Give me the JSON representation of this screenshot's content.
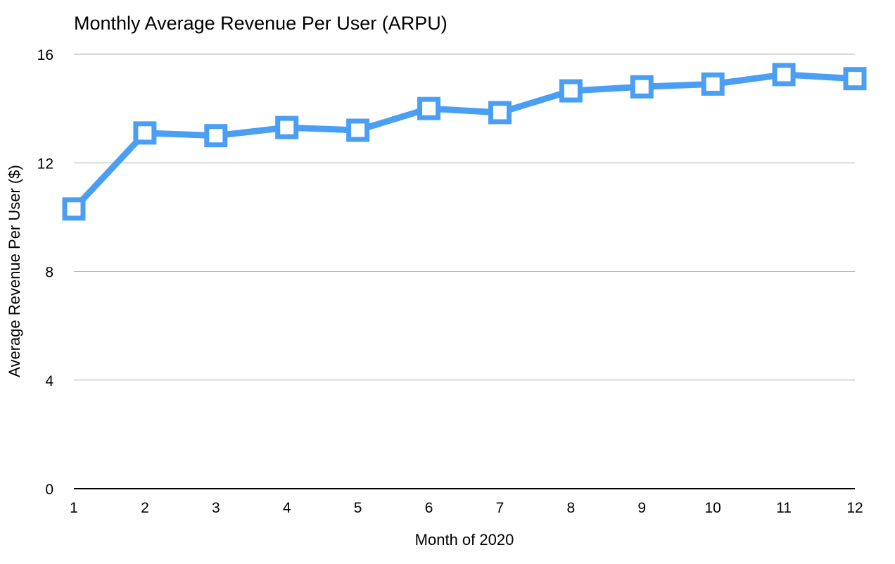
{
  "chart_data": {
    "type": "line",
    "title": "Monthly Average Revenue Per User (ARPU)",
    "xlabel": "Month of 2020",
    "ylabel": "Average Revenue Per User ($)",
    "x": [
      1,
      2,
      3,
      4,
      5,
      6,
      7,
      8,
      9,
      10,
      11,
      12
    ],
    "series": [
      {
        "values": [
          10.3,
          13.1,
          13.0,
          13.3,
          13.2,
          14.0,
          13.85,
          14.65,
          14.8,
          14.9,
          15.25,
          15.1
        ],
        "color": "#4a9ff5",
        "marker": "square"
      }
    ],
    "xlim": [
      1,
      12
    ],
    "ylim": [
      0,
      16
    ],
    "x_ticks": [
      "1",
      "2",
      "3",
      "4",
      "5",
      "6",
      "7",
      "8",
      "9",
      "10",
      "11",
      "12"
    ],
    "y_ticks": [
      "0",
      "4",
      "8",
      "12",
      "16"
    ],
    "grid": true,
    "colors": {
      "line": "#4a9ff5",
      "marker_fill": "#ffffff",
      "gridline": "#b3b3b3",
      "baseline": "#000000"
    }
  }
}
